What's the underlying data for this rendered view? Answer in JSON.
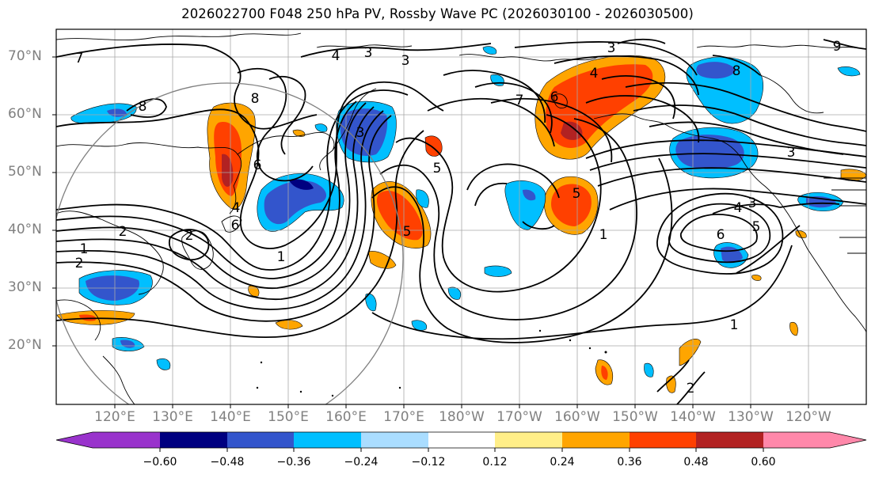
{
  "title": "2026022700 F048 250 hPa PV, Rossby Wave PC (2026030100 - 2026030500)",
  "lat_labels": [
    "70°N",
    "60°N",
    "50°N",
    "40°N",
    "30°N",
    "20°N"
  ],
  "lon_labels": [
    "120°E",
    "130°E",
    "140°E",
    "150°E",
    "160°E",
    "170°E",
    "180°W",
    "170°W",
    "160°W",
    "150°W",
    "140°W",
    "130°W",
    "120°W"
  ],
  "colorbar": {
    "colors": [
      "#9933cc",
      "#000080",
      "#3355cc",
      "#00bfff",
      "#aaddff",
      "#ffffff",
      "#ffee88",
      "#ffa500",
      "#ff4000",
      "#b22222",
      "#ff88aa"
    ],
    "labels": [
      "−0.60",
      "−0.48",
      "−0.36",
      "−0.24",
      "−0.12",
      "0.12",
      "0.24",
      "0.36",
      "0.48",
      "0.60"
    ]
  },
  "contour_labels": [
    "7",
    "4",
    "3",
    "3",
    "8",
    "9",
    "8",
    "4",
    "7",
    "6",
    "3",
    "3",
    "3",
    "3",
    "5",
    "5",
    "5",
    "5",
    "6",
    "6",
    "6",
    "4",
    "4",
    "1",
    "1",
    "1",
    "2",
    "2",
    "2",
    "2",
    "8",
    "1"
  ]
}
